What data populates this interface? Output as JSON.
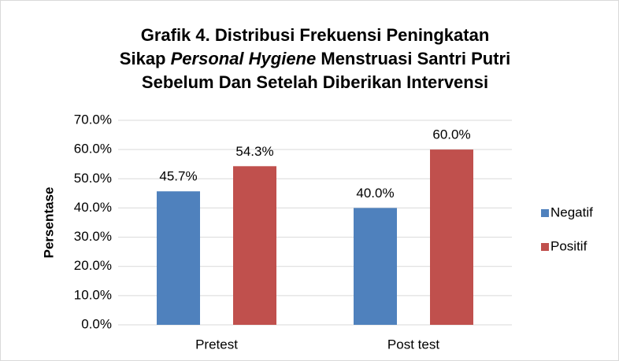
{
  "chart_data": {
    "type": "bar",
    "title": [
      "Grafik 4. Distribusi Frekuensi Peningkatan",
      [
        "Sikap ",
        "Personal Hygiene",
        " Menstruasi Santri Putri"
      ],
      "Sebelum Dan Setelah Diberikan Intervensi"
    ],
    "y_label": "Persentase",
    "categories": [
      "Pretest",
      "Post test"
    ],
    "series": [
      {
        "name": "Negatif",
        "color": "#4f81bd",
        "values": [
          45.7,
          40.0
        ],
        "value_labels": [
          "45.7%",
          "40.0%"
        ]
      },
      {
        "name": "Positif",
        "color": "#c0504d",
        "values": [
          54.3,
          60.0
        ],
        "value_labels": [
          "54.3%",
          "60.0%"
        ]
      }
    ],
    "ylim": [
      0,
      70
    ],
    "yticks": [
      {
        "value": 0,
        "label": "0.0%"
      },
      {
        "value": 10,
        "label": "10.0%"
      },
      {
        "value": 20,
        "label": "20.0%"
      },
      {
        "value": 30,
        "label": "30.0%"
      },
      {
        "value": 40,
        "label": "40.0%"
      },
      {
        "value": 50,
        "label": "50.0%"
      },
      {
        "value": 60,
        "label": "60.0%"
      },
      {
        "value": 70,
        "label": "70.0%"
      }
    ],
    "grid": true,
    "legend": "right"
  }
}
